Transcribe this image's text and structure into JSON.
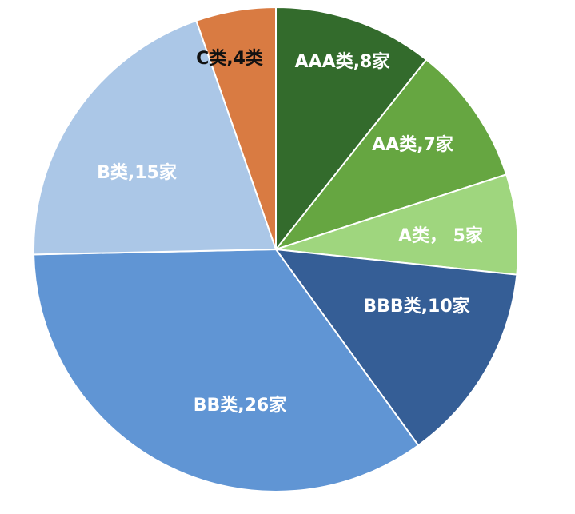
{
  "chart_data": {
    "type": "pie",
    "title": "",
    "slices": [
      {
        "label": "AAA类,8家",
        "category": "AAA类",
        "value": 8,
        "color": "#336b2c",
        "label_color": "#ffffff"
      },
      {
        "label": "AA类,7家",
        "category": "AA类",
        "value": 7,
        "color": "#66a641",
        "label_color": "#ffffff"
      },
      {
        "label": "A类， 5家",
        "category": "A类",
        "value": 5,
        "color": "#9fd67e",
        "label_color": "#ffffff"
      },
      {
        "label": "BBB类,10家",
        "category": "BBB类",
        "value": 10,
        "color": "#355e96",
        "label_color": "#ffffff"
      },
      {
        "label": "BB类,26家",
        "category": "BB类",
        "value": 26,
        "color": "#6095d4",
        "label_color": "#ffffff"
      },
      {
        "label": "B类,15家",
        "category": "B类",
        "value": 15,
        "color": "#abc7e7",
        "label_color": "#ffffff"
      },
      {
        "label": "C类,4类",
        "category": "C类",
        "value": 4,
        "color": "#d97b42",
        "label_color": "#111111"
      }
    ],
    "start": "12 o'clock",
    "direction": "clockwise",
    "legend": "none"
  }
}
